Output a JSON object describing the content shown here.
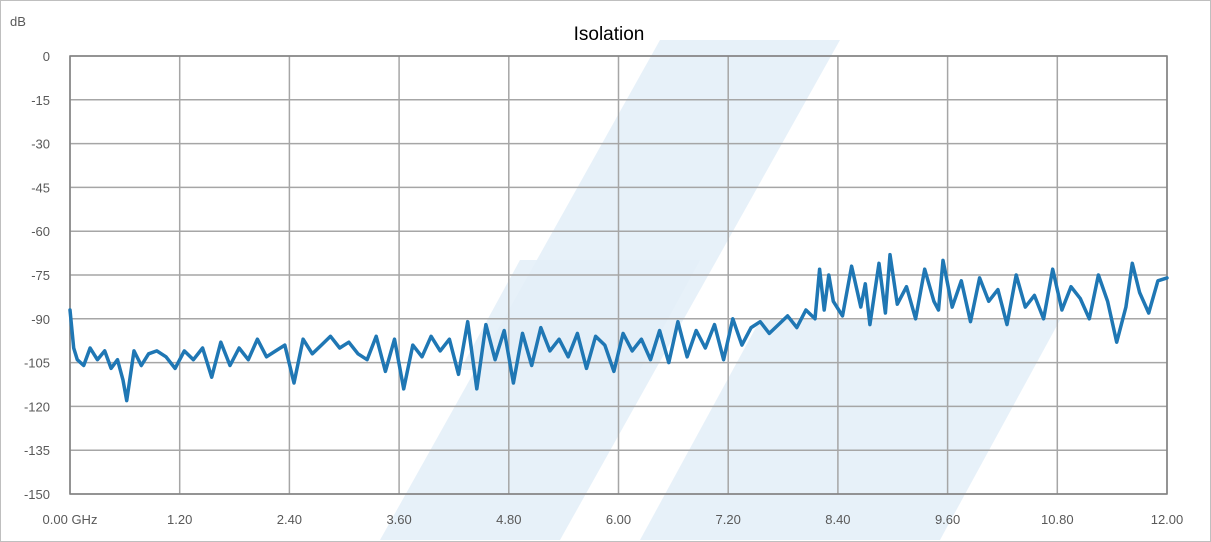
{
  "chart_data": {
    "type": "line",
    "title": "Isolation",
    "ylabel": "dB",
    "xlabel": "",
    "xlim": [
      0,
      12
    ],
    "ylim": [
      -150,
      0
    ],
    "x_ticks": [
      "0.00 GHz",
      "1.20",
      "2.40",
      "3.60",
      "4.80",
      "6.00",
      "7.20",
      "8.40",
      "9.60",
      "10.80",
      "12.00"
    ],
    "y_ticks": [
      "0",
      "-15",
      "-30",
      "-45",
      "-60",
      "-75",
      "-90",
      "-105",
      "-120",
      "-135",
      "-150"
    ],
    "grid": true,
    "legend": "none",
    "line_color": "#1f77b4",
    "series": [
      {
        "x": [
          0.0,
          0.04,
          0.08,
          0.15,
          0.22,
          0.3,
          0.38,
          0.45,
          0.52,
          0.58,
          0.62,
          0.7,
          0.78,
          0.86,
          0.95,
          1.05,
          1.15,
          1.25,
          1.35,
          1.45,
          1.55,
          1.65,
          1.75,
          1.85,
          1.95,
          2.05,
          2.15,
          2.25,
          2.35,
          2.45,
          2.55,
          2.65,
          2.75,
          2.85,
          2.95,
          3.05,
          3.15,
          3.25,
          3.35,
          3.45,
          3.55,
          3.65,
          3.75,
          3.85,
          3.95,
          4.05,
          4.15,
          4.25,
          4.35,
          4.45,
          4.55,
          4.65,
          4.75,
          4.85,
          4.95,
          5.05,
          5.15,
          5.25,
          5.35,
          5.45,
          5.55,
          5.65,
          5.75,
          5.85,
          5.95,
          6.05,
          6.15,
          6.25,
          6.35,
          6.45,
          6.55,
          6.65,
          6.75,
          6.85,
          6.95,
          7.05,
          7.15,
          7.25,
          7.35,
          7.45,
          7.55,
          7.65,
          7.75,
          7.85,
          7.95,
          8.05,
          8.15,
          8.2,
          8.25,
          8.3,
          8.35,
          8.45,
          8.55,
          8.65,
          8.7,
          8.75,
          8.85,
          8.92,
          8.97,
          9.05,
          9.15,
          9.25,
          9.35,
          9.45,
          9.5,
          9.55,
          9.65,
          9.75,
          9.85,
          9.95,
          10.05,
          10.15,
          10.25,
          10.35,
          10.45,
          10.55,
          10.65,
          10.75,
          10.85,
          10.95,
          11.05,
          11.15,
          11.25,
          11.35,
          11.45,
          11.55,
          11.62,
          11.7,
          11.8,
          11.9,
          12.0
        ],
        "y": [
          -87,
          -100,
          -104,
          -106,
          -100,
          -104,
          -101,
          -107,
          -104,
          -111,
          -118,
          -101,
          -106,
          -102,
          -101,
          -103,
          -107,
          -101,
          -104,
          -100,
          -110,
          -98,
          -106,
          -100,
          -104,
          -97,
          -103,
          -101,
          -99,
          -112,
          -97,
          -102,
          -99,
          -96,
          -100,
          -98,
          -102,
          -104,
          -96,
          -108,
          -97,
          -114,
          -99,
          -103,
          -96,
          -101,
          -97,
          -109,
          -91,
          -114,
          -92,
          -104,
          -94,
          -112,
          -95,
          -106,
          -93,
          -101,
          -97,
          -103,
          -95,
          -107,
          -96,
          -99,
          -108,
          -95,
          -101,
          -97,
          -104,
          -94,
          -105,
          -91,
          -103,
          -94,
          -100,
          -92,
          -104,
          -90,
          -99,
          -93,
          -91,
          -95,
          -92,
          -89,
          -93,
          -87,
          -90,
          -73,
          -87,
          -75,
          -84,
          -89,
          -72,
          -86,
          -78,
          -92,
          -71,
          -88,
          -68,
          -85,
          -79,
          -90,
          -73,
          -84,
          -87,
          -70,
          -86,
          -77,
          -91,
          -76,
          -84,
          -80,
          -92,
          -75,
          -86,
          -82,
          -90,
          -73,
          -87,
          -79,
          -83,
          -90,
          -75,
          -84,
          -98,
          -86,
          -71,
          -81,
          -88,
          -77,
          -76
        ]
      }
    ]
  }
}
